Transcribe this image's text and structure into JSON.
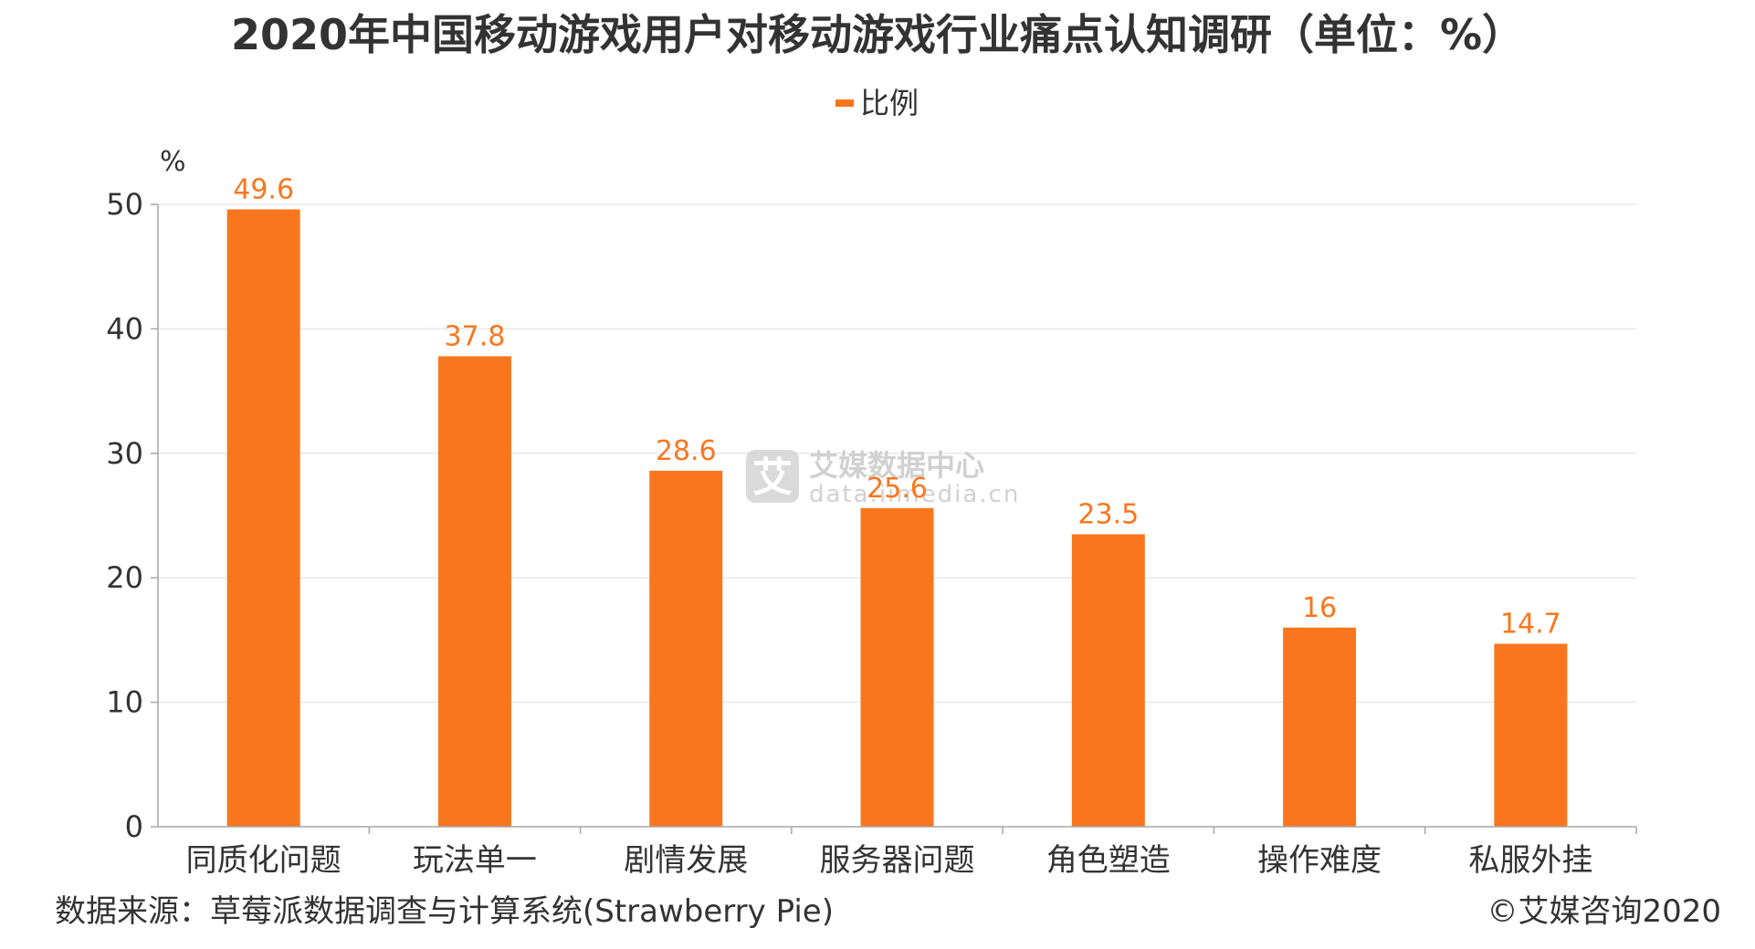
{
  "chart_data": {
    "type": "bar",
    "title": "2020年中国移动游戏用户对移动游戏行业痛点认知调研（单位：%）",
    "y_unit": "%",
    "legend_position": "top-center",
    "grid": true,
    "series": [
      {
        "name": "比例",
        "color": "#fa761e",
        "values": [
          49.6,
          37.8,
          28.6,
          25.6,
          23.5,
          16,
          14.7
        ]
      }
    ],
    "categories": [
      "同质化问题",
      "玩法单一",
      "剧情发展",
      "服务器问题",
      "角色塑造",
      "操作难度",
      "私服外挂"
    ],
    "ylim": [
      0,
      50
    ],
    "yticks": [
      0,
      10,
      20,
      30,
      40,
      50
    ],
    "xlabel": "",
    "ylabel": ""
  },
  "footer": {
    "source": "数据来源：草莓派数据调查与计算系统(Strawberry Pie)",
    "copyright": "©艾媒咨询2020"
  },
  "watermark": {
    "logo_char": "艾",
    "name": "艾媒数据中心",
    "url": "data.iimedia.cn"
  },
  "colors": {
    "bar": "#fa761e",
    "value_label": "#fa761e",
    "axis": "#a6a6a6",
    "grid": "#e8e8e8",
    "text": "#333333"
  }
}
